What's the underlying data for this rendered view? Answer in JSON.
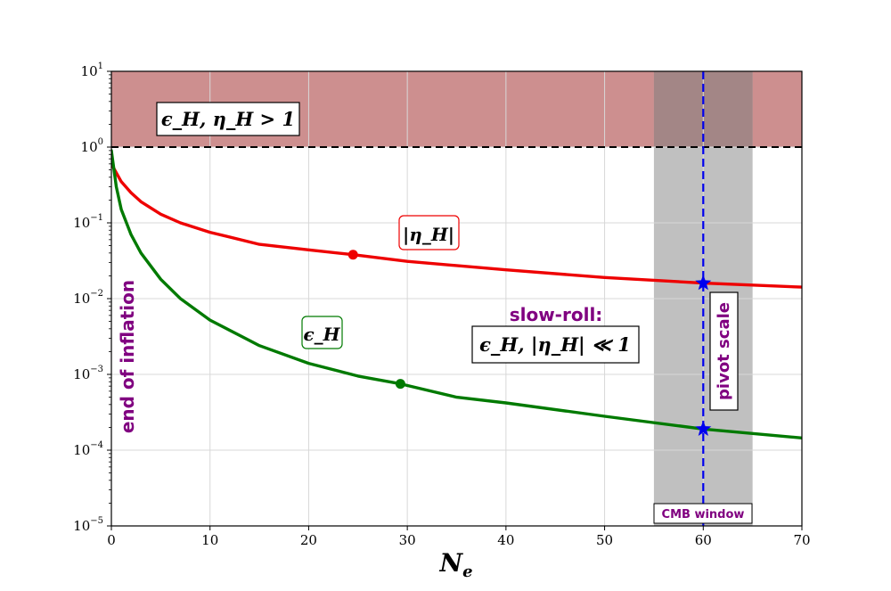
{
  "chart_data": {
    "type": "line",
    "xlabel": "N_e",
    "ylabel": "",
    "xlim": [
      0,
      70
    ],
    "ylim": [
      1e-05,
      10
    ],
    "y_scale": "log",
    "grid": true,
    "x_ticks": [
      0,
      10,
      20,
      30,
      40,
      50,
      60,
      70
    ],
    "y_ticks": [
      {
        "value": 1e-05,
        "base": "10",
        "exp": "−5"
      },
      {
        "value": 0.0001,
        "base": "10",
        "exp": "−4"
      },
      {
        "value": 0.001,
        "base": "10",
        "exp": "−3"
      },
      {
        "value": 0.01,
        "base": "10",
        "exp": "−2"
      },
      {
        "value": 0.1,
        "base": "10",
        "exp": "−1"
      },
      {
        "value": 1,
        "base": "10",
        "exp": "0"
      },
      {
        "value": 10,
        "base": "10",
        "exp": "1"
      }
    ],
    "series": [
      {
        "name": "|η_H|",
        "color": "#ee0000",
        "x": [
          0,
          1,
          2,
          3,
          5,
          7,
          10,
          15,
          20,
          24.5,
          30,
          40,
          50,
          60,
          70
        ],
        "y": [
          0.6,
          0.35,
          0.25,
          0.19,
          0.13,
          0.1,
          0.075,
          0.052,
          0.044,
          0.038,
          0.031,
          0.024,
          0.019,
          0.016,
          0.0142
        ]
      },
      {
        "name": "ε_H",
        "color": "#007a00",
        "x": [
          0,
          0.5,
          1,
          2,
          3,
          5,
          7,
          10,
          15,
          20,
          25,
          29.3,
          35,
          40,
          50,
          60,
          70
        ],
        "y": [
          0.9,
          0.3,
          0.15,
          0.07,
          0.04,
          0.018,
          0.01,
          0.0052,
          0.0024,
          0.0014,
          0.00095,
          0.00075,
          0.0005,
          0.00042,
          0.00028,
          0.00019,
          0.000145
        ]
      }
    ],
    "markers": [
      {
        "series": "|η_H|",
        "x": 24.5,
        "y": 0.038,
        "shape": "dot",
        "color": "#ee0000"
      },
      {
        "series": "ε_H",
        "x": 29.3,
        "y": 0.00075,
        "shape": "dot",
        "color": "#007a00"
      },
      {
        "series": "|η_H|",
        "x": 60,
        "y": 0.016,
        "shape": "star",
        "color": "#0000ee"
      },
      {
        "series": "ε_H",
        "x": 60,
        "y": 0.00019,
        "shape": "star",
        "color": "#0000ee"
      }
    ],
    "regions": [
      {
        "name": "fast-roll region",
        "y_from": 1,
        "y_to": 10,
        "color": "#cd8f8f"
      },
      {
        "name": "CMB window band",
        "x_from": 55,
        "x_to": 65,
        "color": "#bdbdbd"
      }
    ],
    "reference_lines": [
      {
        "name": "unit threshold",
        "orientation": "horizontal",
        "y": 1,
        "color": "#000000",
        "style": "dashed"
      },
      {
        "name": "pivot",
        "orientation": "vertical",
        "x": 60,
        "color": "#0000ee",
        "style": "dashed"
      }
    ],
    "annotations": {
      "fast_roll_box": "ϵ_H, η_H > 1",
      "eta_label": "|η_H|",
      "eps_label": "ϵ_H",
      "slow_roll_title": "slow-roll:",
      "slow_roll_box": "ϵ_H, |η_H| ≪ 1",
      "end_of_inflation": "end of inflation",
      "pivot_scale": "pivot scale",
      "cmb_window": "CMB window"
    }
  }
}
